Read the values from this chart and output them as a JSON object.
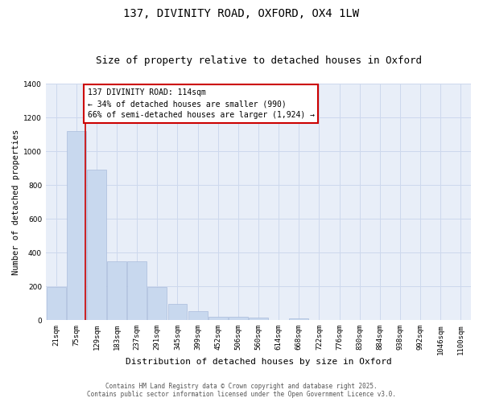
{
  "title1": "137, DIVINITY ROAD, OXFORD, OX4 1LW",
  "title2": "Size of property relative to detached houses in Oxford",
  "xlabel": "Distribution of detached houses by size in Oxford",
  "ylabel": "Number of detached properties",
  "categories": [
    "21sqm",
    "75sqm",
    "129sqm",
    "183sqm",
    "237sqm",
    "291sqm",
    "345sqm",
    "399sqm",
    "452sqm",
    "506sqm",
    "560sqm",
    "614sqm",
    "668sqm",
    "722sqm",
    "776sqm",
    "830sqm",
    "884sqm",
    "938sqm",
    "992sqm",
    "1046sqm",
    "1100sqm"
  ],
  "values": [
    195,
    1120,
    890,
    350,
    350,
    195,
    95,
    55,
    22,
    22,
    15,
    0,
    12,
    0,
    0,
    0,
    0,
    0,
    0,
    0,
    0
  ],
  "bar_color": "#c8d8ee",
  "bar_edge_color": "#aabcdc",
  "annotation_line1": "137 DIVINITY ROAD: 114sqm",
  "annotation_line2": "← 34% of detached houses are smaller (990)",
  "annotation_line3": "66% of semi-detached houses are larger (1,924) →",
  "annotation_box_color": "#cc0000",
  "vline_color": "#cc0000",
  "vline_x": 1.45,
  "ylim": [
    0,
    1400
  ],
  "yticks": [
    0,
    200,
    400,
    600,
    800,
    1000,
    1200,
    1400
  ],
  "grid_color": "#cdd8ed",
  "background_color": "#e8eef8",
  "footer1": "Contains HM Land Registry data © Crown copyright and database right 2025.",
  "footer2": "Contains public sector information licensed under the Open Government Licence v3.0.",
  "title_fontsize": 10,
  "subtitle_fontsize": 9,
  "tick_fontsize": 6.5,
  "label_fontsize": 8,
  "annotation_fontsize": 7,
  "footer_fontsize": 5.5,
  "ylabel_fontsize": 7.5
}
